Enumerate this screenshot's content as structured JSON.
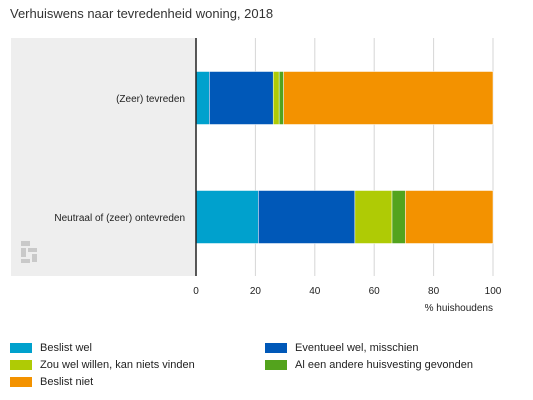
{
  "chart_data": {
    "type": "bar",
    "orientation": "horizontal",
    "stacked": true,
    "title": "Verhuiswens naar tevredenheid woning, 2018",
    "xlabel": "% huishoudens",
    "ylabel": "",
    "xlim": [
      0,
      100
    ],
    "xticks": [
      0,
      20,
      40,
      60,
      80,
      100
    ],
    "grid": true,
    "legend_position": "bottom",
    "categories": [
      "(Zeer) tevreden",
      "Neutraal of (zeer) ontevreden"
    ],
    "series": [
      {
        "name": "Beslist wel",
        "color": "#00a1cd",
        "values": [
          4.5,
          21
        ]
      },
      {
        "name": "Eventueel wel, misschien",
        "color": "#0058b8",
        "values": [
          21.5,
          32.5
        ]
      },
      {
        "name": "Zou wel willen, kan niets vinden",
        "color": "#afcb05",
        "values": [
          2,
          12.5
        ]
      },
      {
        "name": "Al een andere huisvesting gevonden",
        "color": "#53a31d",
        "values": [
          1.5,
          4.5
        ]
      },
      {
        "name": "Beslist niet",
        "color": "#f39200",
        "values": [
          70.5,
          29.5
        ]
      }
    ]
  }
}
